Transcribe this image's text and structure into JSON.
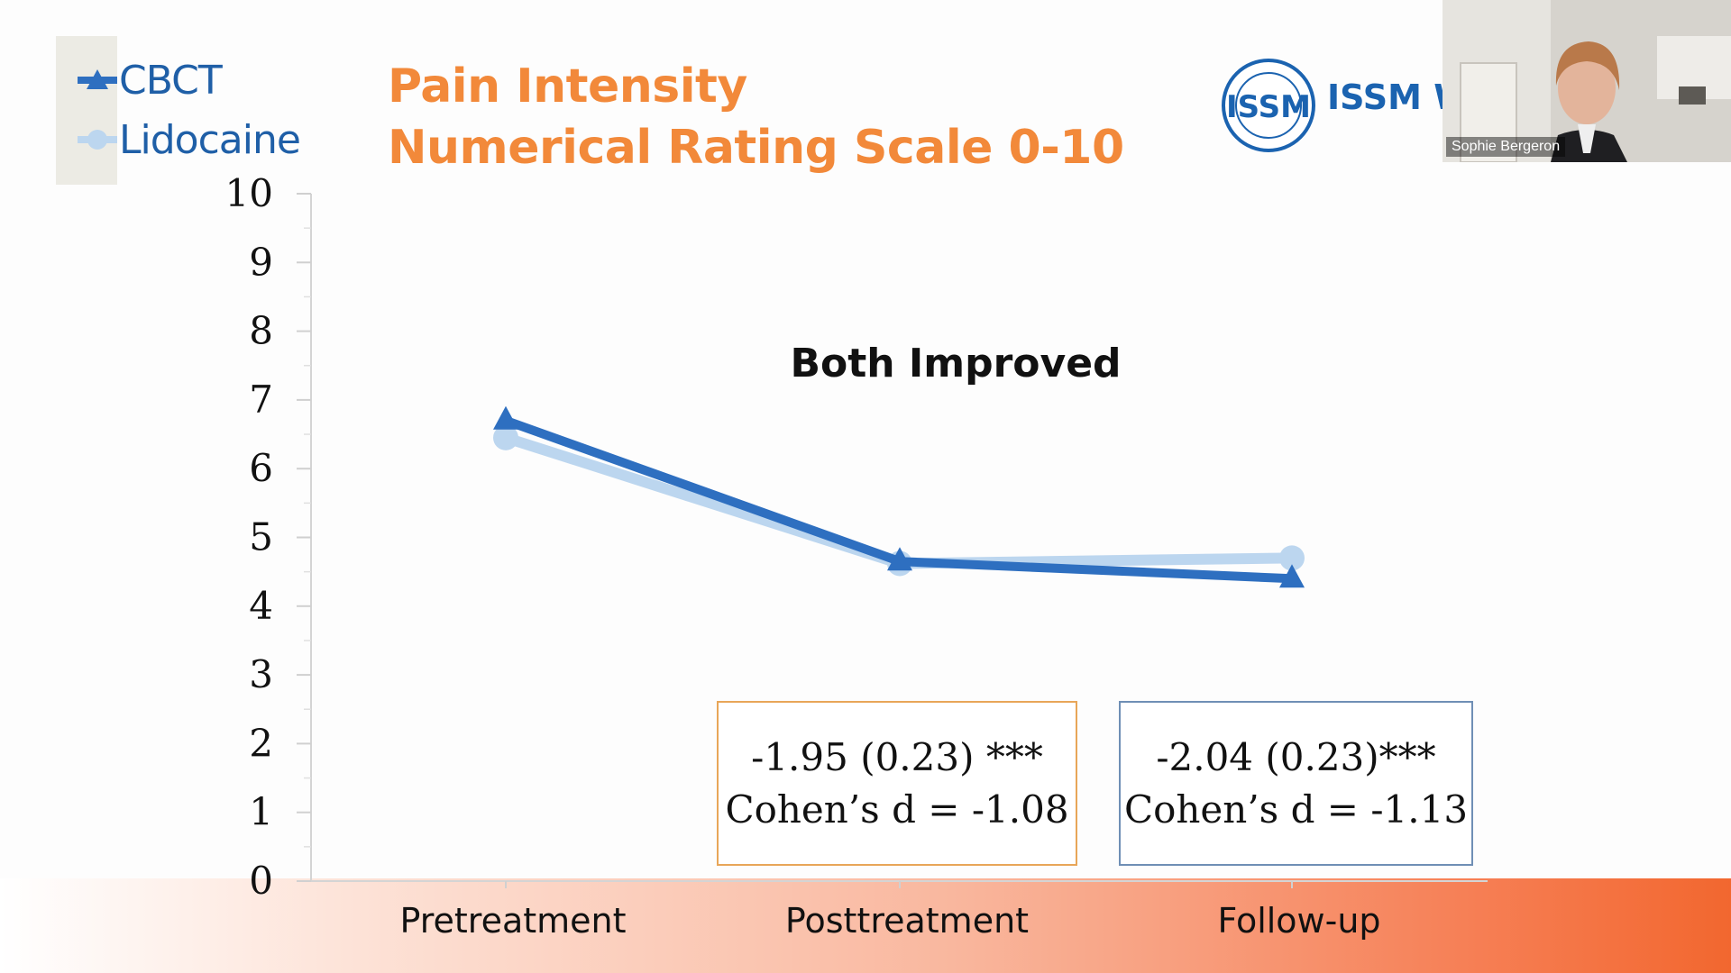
{
  "title": {
    "line1": "Pain Intensity",
    "line2": "Numerical Rating Scale 0-10"
  },
  "annotation": "Both Improved",
  "stat_boxes": [
    {
      "line1": "-1.95 (0.23) ***",
      "line2": "Cohen’s d = -1.08",
      "border_color": "#e8a658"
    },
    {
      "line1": "-2.04 (0.23)***",
      "line2": "Cohen’s d = -1.13",
      "border_color": "#6f8fb5"
    }
  ],
  "logo": {
    "text": "ISSM W",
    "icon": "issm-seal-icon"
  },
  "video": {
    "name": "Sophie Bergeron"
  },
  "colors": {
    "title": "#f2893a",
    "cbct": "#2e6fc0",
    "lidocaine": "#bcd6ef",
    "legend_text": "#1f5fa7",
    "band_end": "#f2672f"
  },
  "chart_data": {
    "type": "line",
    "categories": [
      "Pretreatment",
      "Posttreatment",
      "Follow-up"
    ],
    "series": [
      {
        "name": "CBCT",
        "values": [
          6.7,
          4.65,
          4.4
        ],
        "color": "#2e6fc0",
        "marker": "triangle"
      },
      {
        "name": "Lidocaine",
        "values": [
          6.45,
          4.62,
          4.7
        ],
        "color": "#bcd6ef",
        "marker": "circle"
      }
    ],
    "ylim": [
      0,
      10
    ],
    "yticks": [
      "0",
      "1",
      "2",
      "3",
      "4",
      "5",
      "6",
      "7",
      "8",
      "9",
      "10"
    ],
    "grid": false,
    "legend_position": "top-left"
  }
}
